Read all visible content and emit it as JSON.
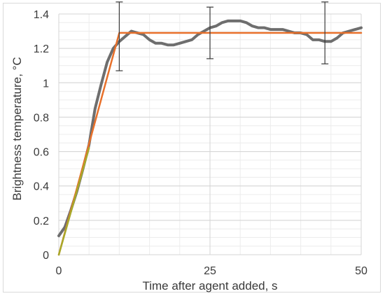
{
  "chart_data": {
    "type": "line",
    "xlabel": "Time after agent added, s",
    "ylabel": "Brightness temperature, °C",
    "xlim": [
      0,
      50
    ],
    "ylim": [
      0,
      1.4
    ],
    "x_ticks": [
      "0",
      "25",
      "50"
    ],
    "x_tick_values": [
      0,
      25,
      50
    ],
    "x_minor_step": 5,
    "y_ticks": [
      "0",
      "0.2",
      "0.4",
      "0.6",
      "0.8",
      "1",
      "1.2",
      "1.4"
    ],
    "y_tick_values": [
      0,
      0.2,
      0.4,
      0.6,
      0.8,
      1.0,
      1.2,
      1.4
    ],
    "y_minor_step": 0.05,
    "grid": true,
    "legend": "none",
    "series": [
      {
        "color": "#6e6e6e",
        "style": "thick",
        "x": [
          0,
          1,
          2,
          3,
          4,
          5,
          6,
          7,
          8,
          9,
          10,
          11,
          12,
          13,
          14,
          15,
          16,
          17,
          18,
          19,
          20,
          21,
          22,
          23,
          24,
          25,
          26,
          27,
          28,
          29,
          30,
          31,
          32,
          33,
          34,
          35,
          36,
          37,
          38,
          39,
          40,
          41,
          42,
          43,
          44,
          45,
          46,
          47,
          48,
          49,
          50
        ],
        "y": [
          0.11,
          0.16,
          0.26,
          0.37,
          0.5,
          0.64,
          0.85,
          0.99,
          1.12,
          1.2,
          1.24,
          1.27,
          1.3,
          1.29,
          1.28,
          1.25,
          1.23,
          1.23,
          1.22,
          1.22,
          1.23,
          1.24,
          1.25,
          1.28,
          1.3,
          1.32,
          1.33,
          1.35,
          1.36,
          1.36,
          1.36,
          1.35,
          1.33,
          1.32,
          1.32,
          1.31,
          1.31,
          1.31,
          1.3,
          1.29,
          1.29,
          1.28,
          1.25,
          1.25,
          1.24,
          1.24,
          1.26,
          1.29,
          1.3,
          1.31,
          1.32
        ]
      },
      {
        "color": "#e8702a",
        "style": "fit",
        "x": [
          0,
          10,
          50
        ],
        "y": [
          0,
          1.29,
          1.29
        ]
      },
      {
        "color": "#a8a82a",
        "style": "fit-segment",
        "x": [
          0,
          5
        ],
        "y": [
          0,
          0.62
        ]
      }
    ],
    "error_bars": [
      {
        "x": 10,
        "y": 1.27,
        "low": 1.07,
        "high": 1.47
      },
      {
        "x": 25,
        "y": 1.29,
        "low": 1.14,
        "high": 1.44
      },
      {
        "x": 44,
        "y": 1.29,
        "low": 1.11,
        "high": 1.47
      }
    ]
  }
}
